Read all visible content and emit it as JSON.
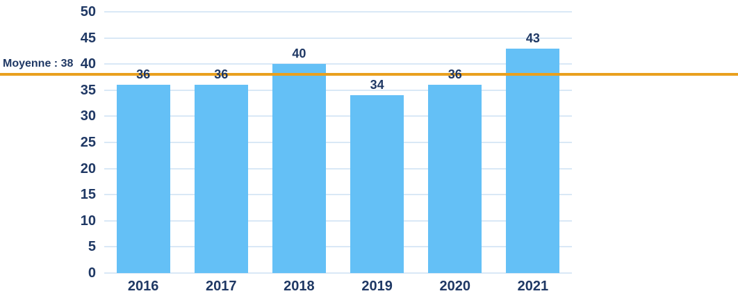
{
  "chart_data": {
    "type": "bar",
    "title": "",
    "xlabel": "",
    "ylabel": "",
    "categories": [
      "2016",
      "2017",
      "2018",
      "2019",
      "2020",
      "2021"
    ],
    "values": [
      36,
      36,
      40,
      34,
      36,
      43
    ],
    "ylim": [
      0,
      50
    ],
    "ytick_step": 5,
    "grid": true,
    "legend": "none",
    "bar_color": "#64C0F6",
    "grid_color": "#D9E8F6",
    "text_color": "#1F3864",
    "average_line": {
      "label": "Moyenne : 38",
      "value": 38,
      "color": "#E9A01E"
    }
  }
}
